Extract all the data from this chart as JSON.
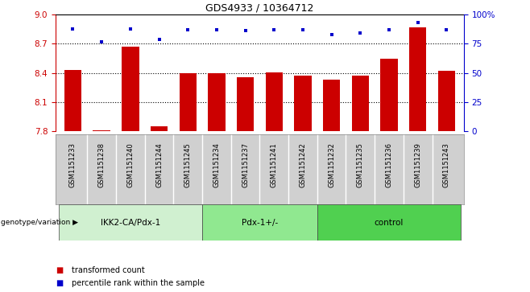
{
  "title": "GDS4933 / 10364712",
  "samples": [
    "GSM1151233",
    "GSM1151238",
    "GSM1151240",
    "GSM1151244",
    "GSM1151245",
    "GSM1151234",
    "GSM1151237",
    "GSM1151241",
    "GSM1151242",
    "GSM1151232",
    "GSM1151235",
    "GSM1151236",
    "GSM1151239",
    "GSM1151243"
  ],
  "transformed_count": [
    8.43,
    7.81,
    8.67,
    7.85,
    8.4,
    8.4,
    8.36,
    8.41,
    8.37,
    8.33,
    8.37,
    8.55,
    8.87,
    8.42
  ],
  "percentile_rank": [
    88,
    77,
    88,
    79,
    87,
    87,
    86,
    87,
    87,
    83,
    84,
    87,
    93,
    87
  ],
  "groups": [
    {
      "label": "IKK2-CA/Pdx-1",
      "start": 0,
      "end": 5,
      "color": "#c8f0c8"
    },
    {
      "label": "Pdx-1+/-",
      "start": 5,
      "end": 9,
      "color": "#90e890"
    },
    {
      "label": "control",
      "start": 9,
      "end": 14,
      "color": "#50d050"
    }
  ],
  "ylim_left": [
    7.8,
    9.0
  ],
  "ylim_right": [
    0,
    100
  ],
  "yticks_left": [
    7.8,
    8.1,
    8.4,
    8.7,
    9.0
  ],
  "yticks_right": [
    0,
    25,
    50,
    75,
    100
  ],
  "bar_color": "#cc0000",
  "dot_color": "#0000cc",
  "background_color": "#ffffff",
  "genotype_label": "genotype/variation",
  "legend_items": [
    {
      "label": "transformed count",
      "color": "#cc0000"
    },
    {
      "label": "percentile rank within the sample",
      "color": "#0000cc"
    }
  ],
  "grid_vals": [
    8.1,
    8.4,
    8.7
  ],
  "sample_box_color": "#d0d0d0",
  "sample_box_edge": "#888888"
}
